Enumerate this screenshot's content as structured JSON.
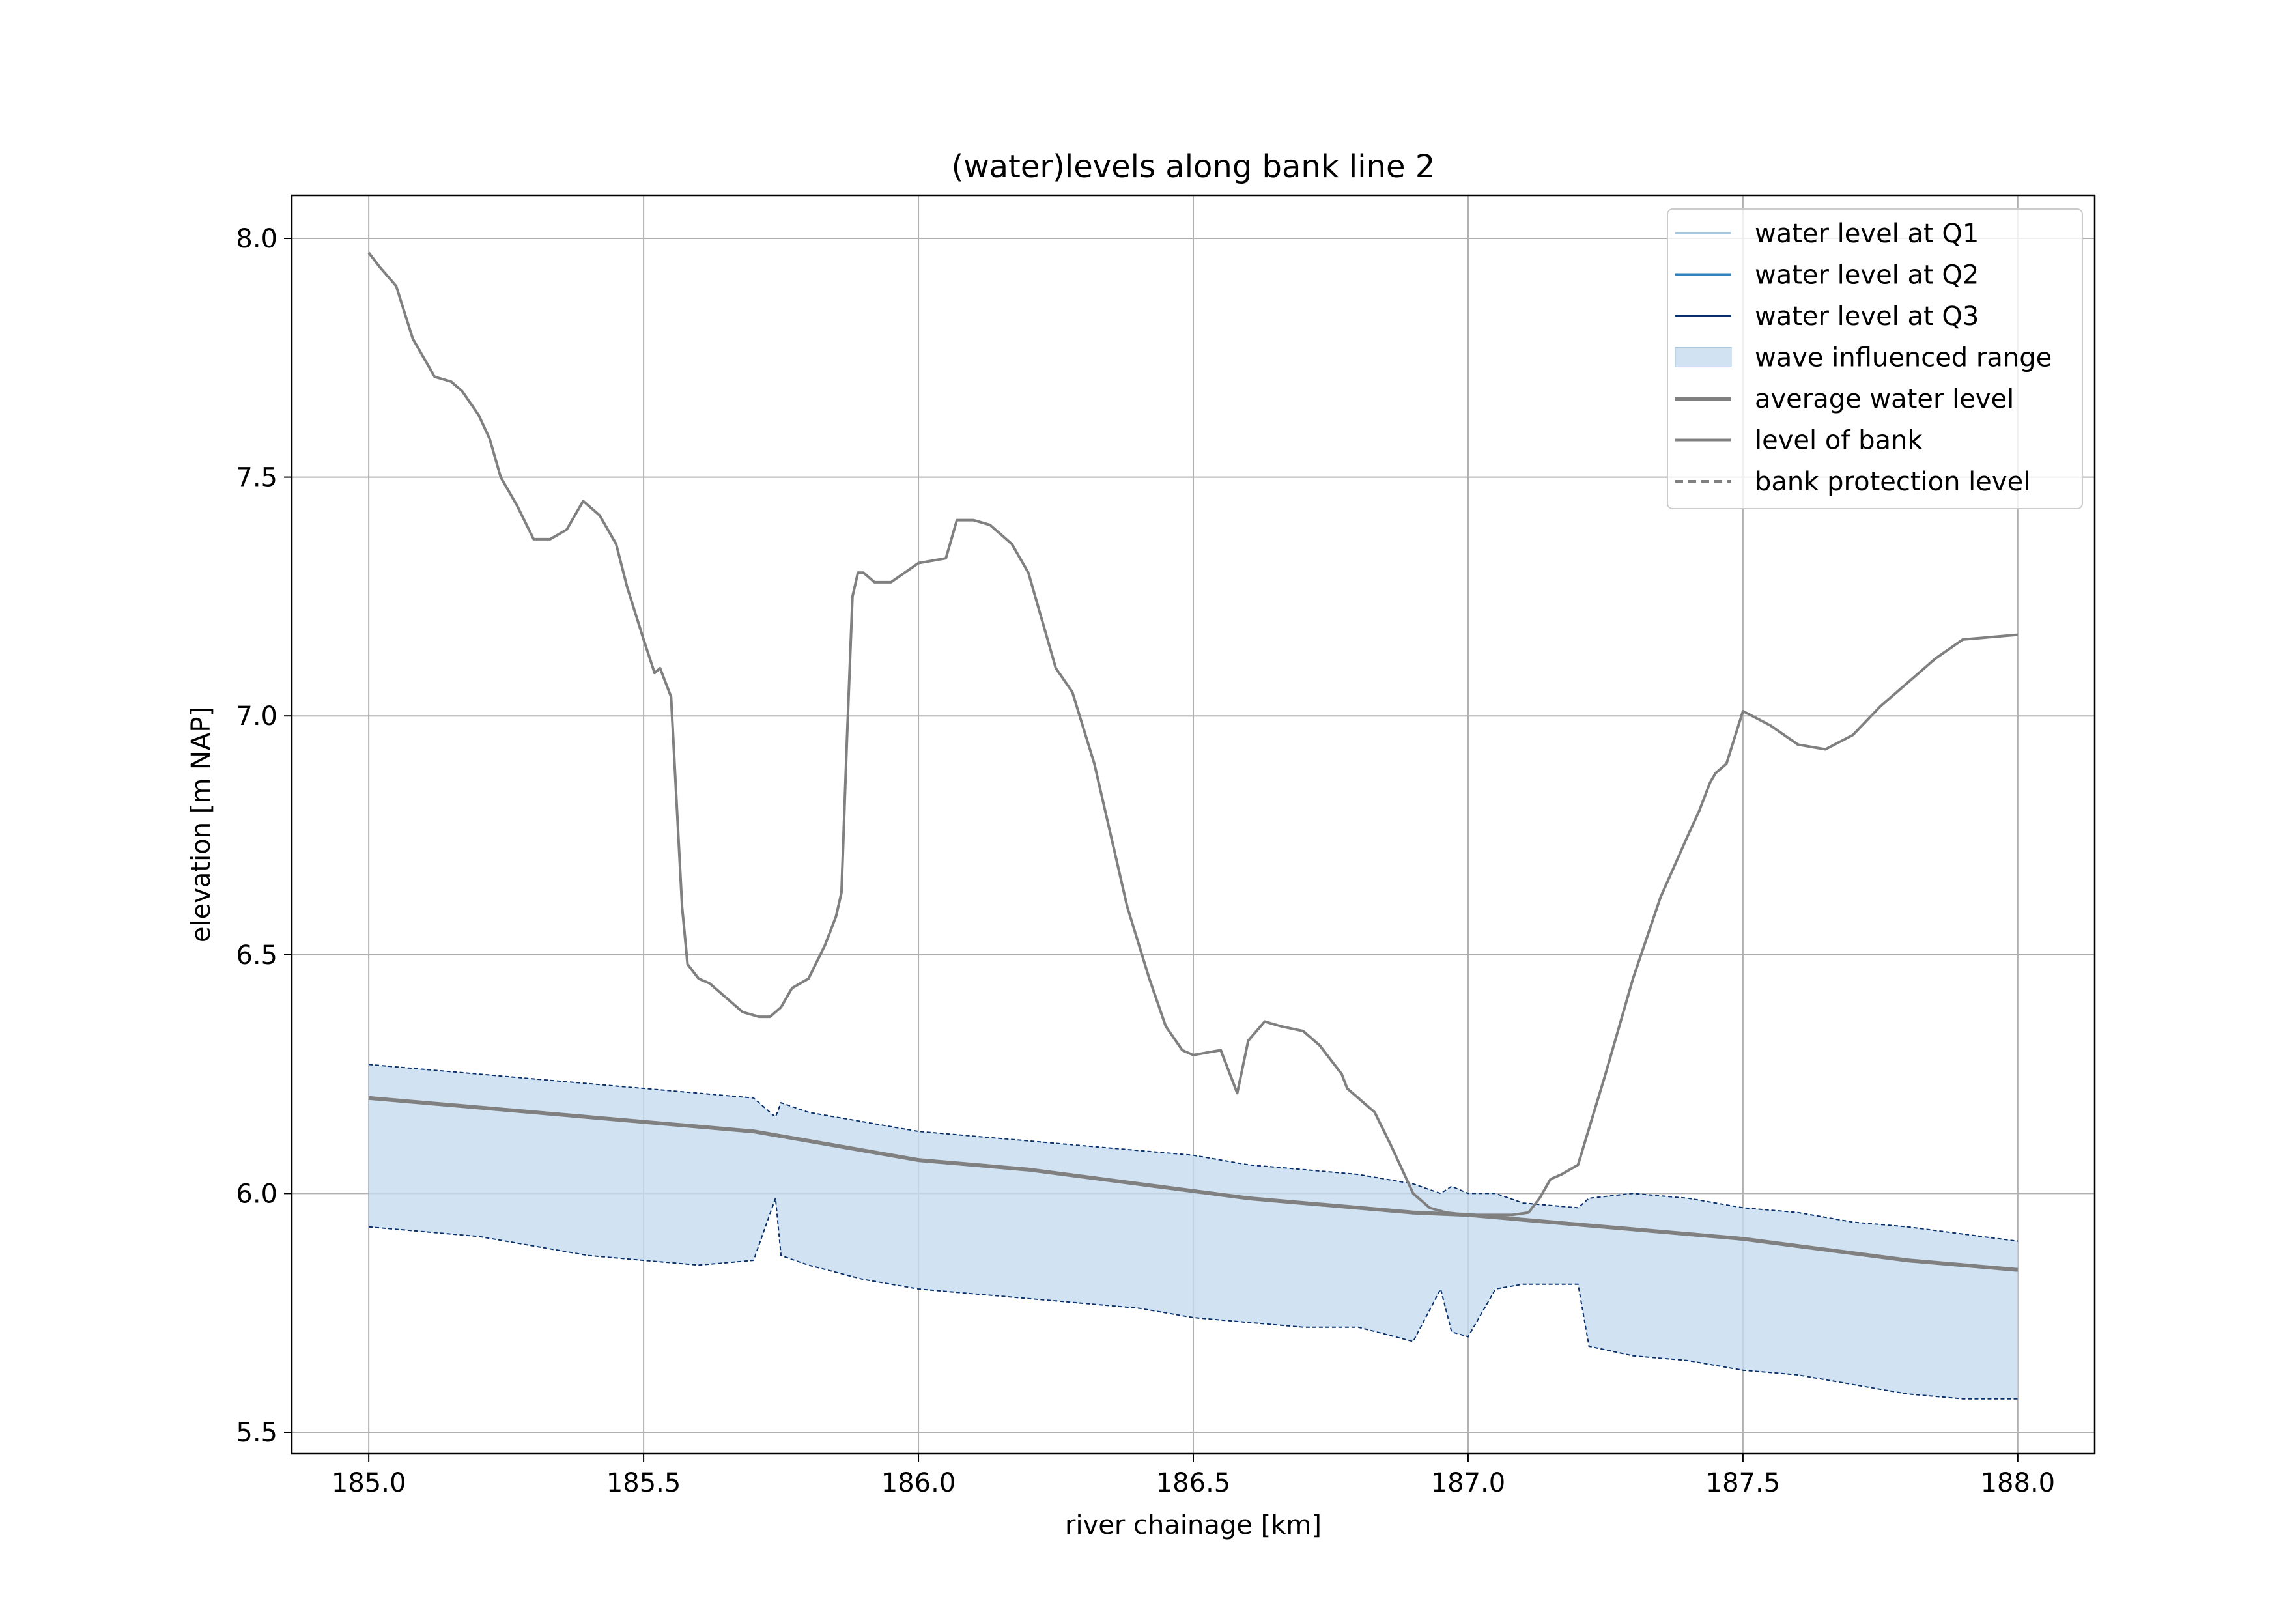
{
  "chart_data": {
    "type": "line",
    "title": "(water)levels along bank line 2",
    "xlabel": "river chainage [km]",
    "ylabel": "elevation [m NAP]",
    "xlim": [
      184.86,
      188.14
    ],
    "ylim": [
      5.455,
      8.09
    ],
    "xticks": [
      185.0,
      185.5,
      186.0,
      186.5,
      187.0,
      187.5,
      188.0
    ],
    "xtick_labels": [
      "185.0",
      "185.5",
      "186.0",
      "186.5",
      "187.0",
      "187.5",
      "188.0"
    ],
    "yticks": [
      5.5,
      6.0,
      6.5,
      7.0,
      7.5,
      8.0
    ],
    "ytick_labels": [
      "5.5",
      "6.0",
      "6.5",
      "7.0",
      "7.5",
      "8.0"
    ],
    "grid": true,
    "legend_position": "top-right",
    "colors": {
      "q1": "#a6c8e0",
      "q2": "#3182bd",
      "q3": "#08306b",
      "wave_fill": "#c6dbef",
      "wave_fill_opacity": 0.8,
      "avg": "#808080",
      "bank": "#808080",
      "grid": "#b0b0b0"
    },
    "legend": [
      {
        "label": "water level at Q1",
        "style": "line-q1"
      },
      {
        "label": "water level at Q2",
        "style": "line-q2"
      },
      {
        "label": "water level at Q3",
        "style": "line-q3"
      },
      {
        "label": "wave influenced range",
        "style": "patch"
      },
      {
        "label": "average water level",
        "style": "line-avg"
      },
      {
        "label": "level of bank",
        "style": "line-bank"
      },
      {
        "label": "bank protection level",
        "style": "dashed"
      }
    ],
    "series": [
      {
        "name": "level of bank",
        "x": [
          185.0,
          185.02,
          185.05,
          185.08,
          185.12,
          185.15,
          185.17,
          185.2,
          185.22,
          185.24,
          185.27,
          185.3,
          185.33,
          185.36,
          185.39,
          185.42,
          185.45,
          185.47,
          185.5,
          185.52,
          185.53,
          185.55,
          185.57,
          185.58,
          185.6,
          185.62,
          185.65,
          185.68,
          185.71,
          185.73,
          185.75,
          185.77,
          185.8,
          185.83,
          185.85,
          185.86,
          185.87,
          185.88,
          185.89,
          185.9,
          185.92,
          185.95,
          186.0,
          186.05,
          186.07,
          186.1,
          186.13,
          186.17,
          186.2,
          186.22,
          186.25,
          186.28,
          186.32,
          186.35,
          186.38,
          186.42,
          186.45,
          186.48,
          186.5,
          186.55,
          186.58,
          186.6,
          186.63,
          186.66,
          186.7,
          186.73,
          186.75,
          186.77,
          186.78,
          186.8,
          186.83,
          186.86,
          186.88,
          186.9,
          186.93,
          186.96,
          187.0,
          187.05,
          187.08,
          187.11,
          187.13,
          187.15,
          187.17,
          187.2,
          187.25,
          187.3,
          187.35,
          187.4,
          187.42,
          187.44,
          187.45,
          187.47,
          187.5,
          187.55,
          187.6,
          187.65,
          187.7,
          187.75,
          187.8,
          187.85,
          187.9,
          188.0
        ],
        "y": [
          7.97,
          7.94,
          7.9,
          7.79,
          7.71,
          7.7,
          7.68,
          7.63,
          7.58,
          7.5,
          7.44,
          7.37,
          7.37,
          7.39,
          7.45,
          7.42,
          7.36,
          7.27,
          7.16,
          7.09,
          7.1,
          7.04,
          6.6,
          6.48,
          6.45,
          6.44,
          6.41,
          6.38,
          6.37,
          6.37,
          6.39,
          6.43,
          6.45,
          6.52,
          6.58,
          6.63,
          6.95,
          7.25,
          7.3,
          7.3,
          7.28,
          7.28,
          7.32,
          7.33,
          7.41,
          7.41,
          7.4,
          7.36,
          7.3,
          7.22,
          7.1,
          7.05,
          6.9,
          6.75,
          6.6,
          6.45,
          6.35,
          6.3,
          6.29,
          6.3,
          6.21,
          6.32,
          6.36,
          6.35,
          6.34,
          6.31,
          6.28,
          6.25,
          6.22,
          6.2,
          6.17,
          6.1,
          6.05,
          6.0,
          5.97,
          5.96,
          5.955,
          5.955,
          5.955,
          5.96,
          5.99,
          6.03,
          6.04,
          6.06,
          6.25,
          6.45,
          6.62,
          6.75,
          6.8,
          6.86,
          6.88,
          6.9,
          7.01,
          6.98,
          6.94,
          6.93,
          6.96,
          7.02,
          7.07,
          7.12,
          7.16,
          7.17
        ]
      },
      {
        "name": "average water level",
        "x": [
          185.0,
          185.2,
          185.4,
          185.6,
          185.7,
          185.8,
          185.9,
          186.0,
          186.1,
          186.2,
          186.3,
          186.4,
          186.5,
          186.6,
          186.7,
          186.8,
          186.9,
          187.0,
          187.1,
          187.2,
          187.3,
          187.4,
          187.5,
          187.6,
          187.7,
          187.8,
          187.9,
          188.0
        ],
        "y": [
          6.2,
          6.18,
          6.16,
          6.14,
          6.13,
          6.11,
          6.09,
          6.07,
          6.06,
          6.05,
          6.035,
          6.02,
          6.005,
          5.99,
          5.98,
          5.97,
          5.96,
          5.955,
          5.945,
          5.935,
          5.925,
          5.915,
          5.905,
          5.89,
          5.875,
          5.86,
          5.85,
          5.84
        ]
      },
      {
        "name": "wave influenced range",
        "x": [
          185.0,
          185.2,
          185.4,
          185.6,
          185.7,
          185.74,
          185.75,
          185.8,
          185.9,
          186.0,
          186.1,
          186.2,
          186.3,
          186.4,
          186.5,
          186.6,
          186.7,
          186.8,
          186.9,
          186.95,
          186.97,
          187.0,
          187.05,
          187.1,
          187.2,
          187.22,
          187.3,
          187.4,
          187.5,
          187.6,
          187.7,
          187.8,
          187.9,
          188.0
        ],
        "upper": [
          6.27,
          6.25,
          6.23,
          6.21,
          6.2,
          6.16,
          6.19,
          6.17,
          6.15,
          6.13,
          6.12,
          6.11,
          6.1,
          6.09,
          6.08,
          6.06,
          6.05,
          6.04,
          6.02,
          6.0,
          6.015,
          6.0,
          6.0,
          5.98,
          5.97,
          5.99,
          6.0,
          5.99,
          5.97,
          5.96,
          5.94,
          5.93,
          5.915,
          5.9
        ],
        "lower": [
          5.93,
          5.91,
          5.87,
          5.85,
          5.86,
          5.99,
          5.87,
          5.85,
          5.82,
          5.8,
          5.79,
          5.78,
          5.77,
          5.76,
          5.74,
          5.73,
          5.72,
          5.72,
          5.69,
          5.8,
          5.71,
          5.7,
          5.8,
          5.81,
          5.81,
          5.68,
          5.66,
          5.65,
          5.63,
          5.62,
          5.6,
          5.58,
          5.57,
          5.57
        ]
      }
    ]
  }
}
